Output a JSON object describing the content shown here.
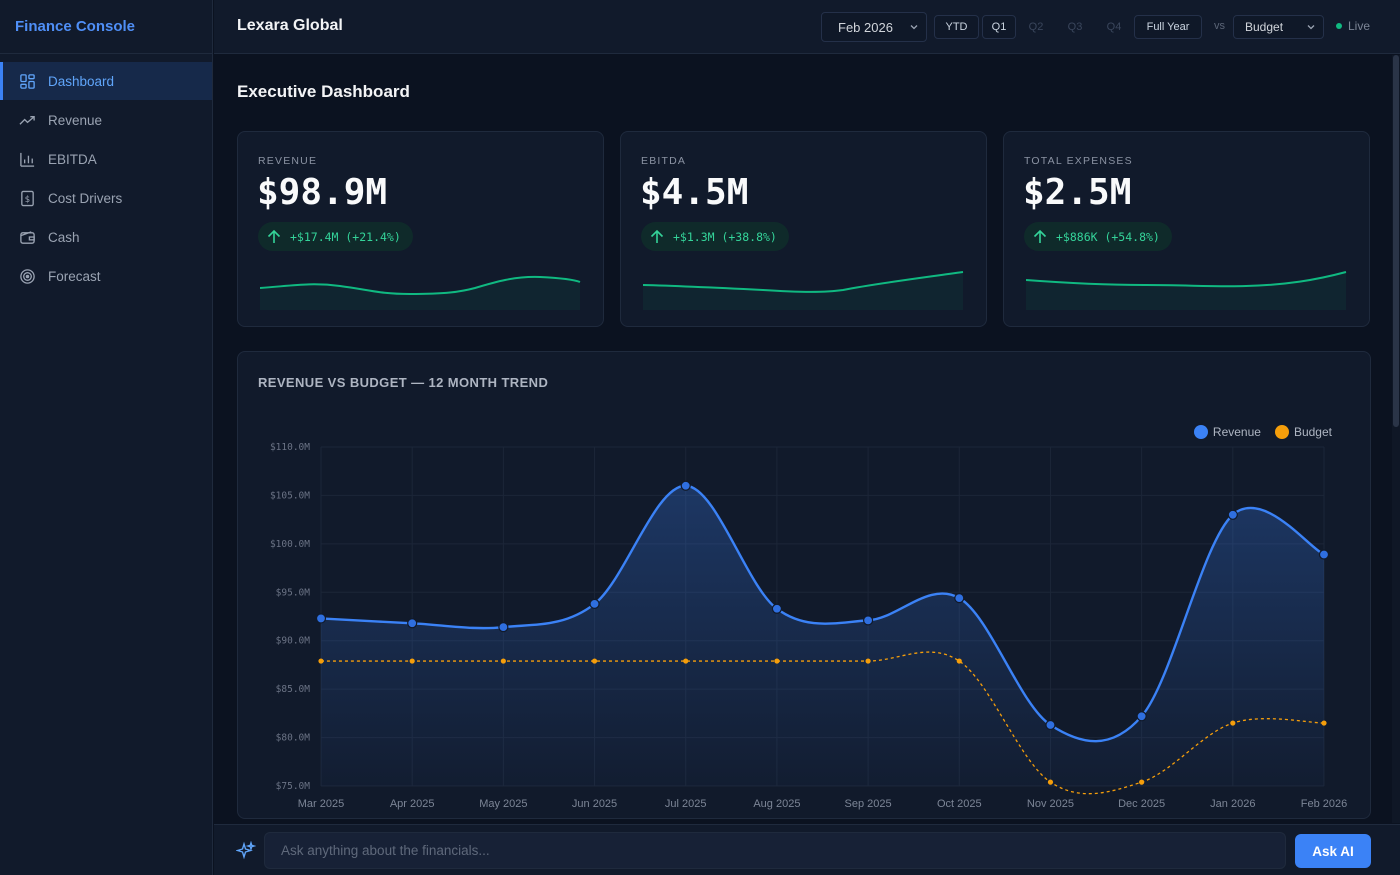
{
  "app": {
    "brand": "Finance Console",
    "company": "Lexara Global"
  },
  "sidebar": {
    "items": [
      {
        "label": "Dashboard",
        "icon": "dashboard-grid-icon",
        "active": true
      },
      {
        "label": "Revenue",
        "icon": "trending-up-icon"
      },
      {
        "label": "EBITDA",
        "icon": "bar-chart-icon"
      },
      {
        "label": "Cost Drivers",
        "icon": "receipt-dollar-icon"
      },
      {
        "label": "Cash",
        "icon": "wallet-icon"
      },
      {
        "label": "Forecast",
        "icon": "target-icon"
      }
    ]
  },
  "topbar": {
    "period": "Feb 2026",
    "periods": [
      "YTD",
      "Q1",
      "Q2",
      "Q3",
      "Q4",
      "Full Year"
    ],
    "vs_label": "vs",
    "comparison": "Budget",
    "live_label": "Live"
  },
  "page": {
    "title": "Executive Dashboard"
  },
  "kpis": [
    {
      "label": "REVENUE",
      "value": "$98.9M",
      "delta": "+$17.4M (+21.4%)"
    },
    {
      "label": "EBITDA",
      "value": "$4.5M",
      "delta": "+$1.3M (+38.8%)"
    },
    {
      "label": "TOTAL EXPENSES",
      "value": "$2.5M",
      "delta": "+$886K (+54.8%)"
    }
  ],
  "colors": {
    "revenue": "#3b82f6",
    "budget": "#f59e0b",
    "positive": "#10b981",
    "accent": "#3b82f6"
  },
  "chart_data": {
    "type": "line",
    "title": "REVENUE VS BUDGET — 12 MONTH TREND",
    "xlabel": "",
    "ylabel": "",
    "categories": [
      "Mar 2025",
      "Apr 2025",
      "May 2025",
      "Jun 2025",
      "Jul 2025",
      "Aug 2025",
      "Sep 2025",
      "Oct 2025",
      "Nov 2025",
      "Dec 2025",
      "Jan 2026",
      "Feb 2026"
    ],
    "series": [
      {
        "name": "Revenue",
        "values": [
          92.3,
          91.8,
          91.4,
          93.8,
          106.0,
          93.3,
          92.1,
          94.4,
          81.3,
          82.2,
          103.0,
          98.9
        ]
      },
      {
        "name": "Budget",
        "values": [
          87.9,
          87.9,
          87.9,
          87.9,
          87.9,
          87.9,
          87.9,
          87.9,
          75.4,
          75.4,
          81.5,
          81.5
        ]
      }
    ],
    "yticks": [
      "$75.0M",
      "$80.0M",
      "$85.0M",
      "$90.0M",
      "$95.0M",
      "$100.0M",
      "$105.0M",
      "$110.0M"
    ],
    "ylim": [
      75,
      110
    ],
    "grid": true,
    "legend": "top-right"
  },
  "ask": {
    "placeholder": "Ask anything about the financials...",
    "button": "Ask AI"
  }
}
